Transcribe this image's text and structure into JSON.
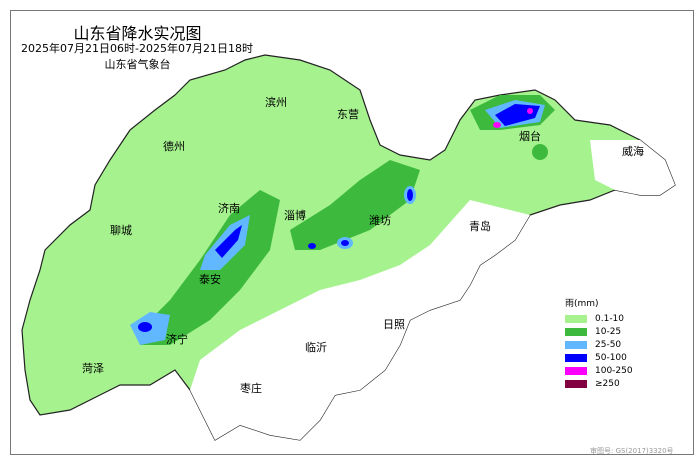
{
  "header": {
    "title": "山东省降水实况图",
    "period": "2025年07月21日06时-2025年07月21日18时",
    "issuer": "山东省气象台"
  },
  "cities": [
    "滨州",
    "东营",
    "德州",
    "烟台",
    "威海",
    "济南",
    "淄博",
    "潍坊",
    "青岛",
    "聊城",
    "泰安",
    "日照",
    "临沂",
    "济宁",
    "菏泽",
    "枣庄"
  ],
  "legend": {
    "title": "雨(mm)",
    "items": [
      {
        "label": "0.1-10",
        "color": "#a6f28f"
      },
      {
        "label": "10-25",
        "color": "#3dba3d"
      },
      {
        "label": "25-50",
        "color": "#61b8ff"
      },
      {
        "label": "50-100",
        "color": "#0000fe"
      },
      {
        "label": "100-250",
        "color": "#fa00fa"
      },
      {
        "label": "≥250",
        "color": "#800040"
      }
    ]
  },
  "footer": {
    "approval": "审图号: GS(2017)3320号"
  }
}
